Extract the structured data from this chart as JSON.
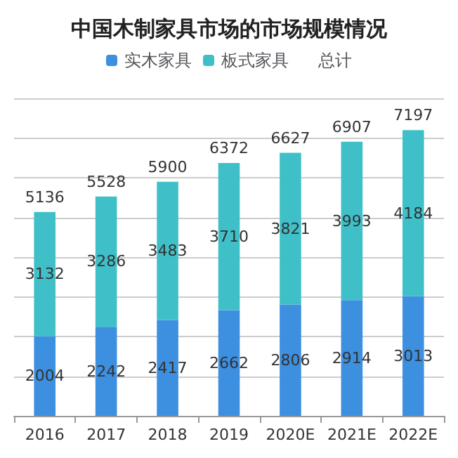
{
  "chart_data": {
    "type": "bar",
    "title": "中国木制家具市场的市场规模情况",
    "legend_title": "总计",
    "categories": [
      "2016",
      "2017",
      "2018",
      "2019",
      "2020E",
      "2021E",
      "2022E"
    ],
    "stacked": true,
    "data_labels": true,
    "legend": "top",
    "grid": "y",
    "series": [
      {
        "name": "实木家具",
        "color": "#3d8fe0",
        "values": [
          2004,
          2242,
          2417,
          2662,
          2806,
          2914,
          3013
        ]
      },
      {
        "name": "板式家具",
        "color": "#3fc0c8",
        "values": [
          3132,
          3286,
          3483,
          3710,
          3821,
          3993,
          4184
        ]
      }
    ],
    "totals": [
      "5136",
      "5528",
      "5900",
      "6372",
      "6627",
      "6907",
      "7197"
    ]
  }
}
